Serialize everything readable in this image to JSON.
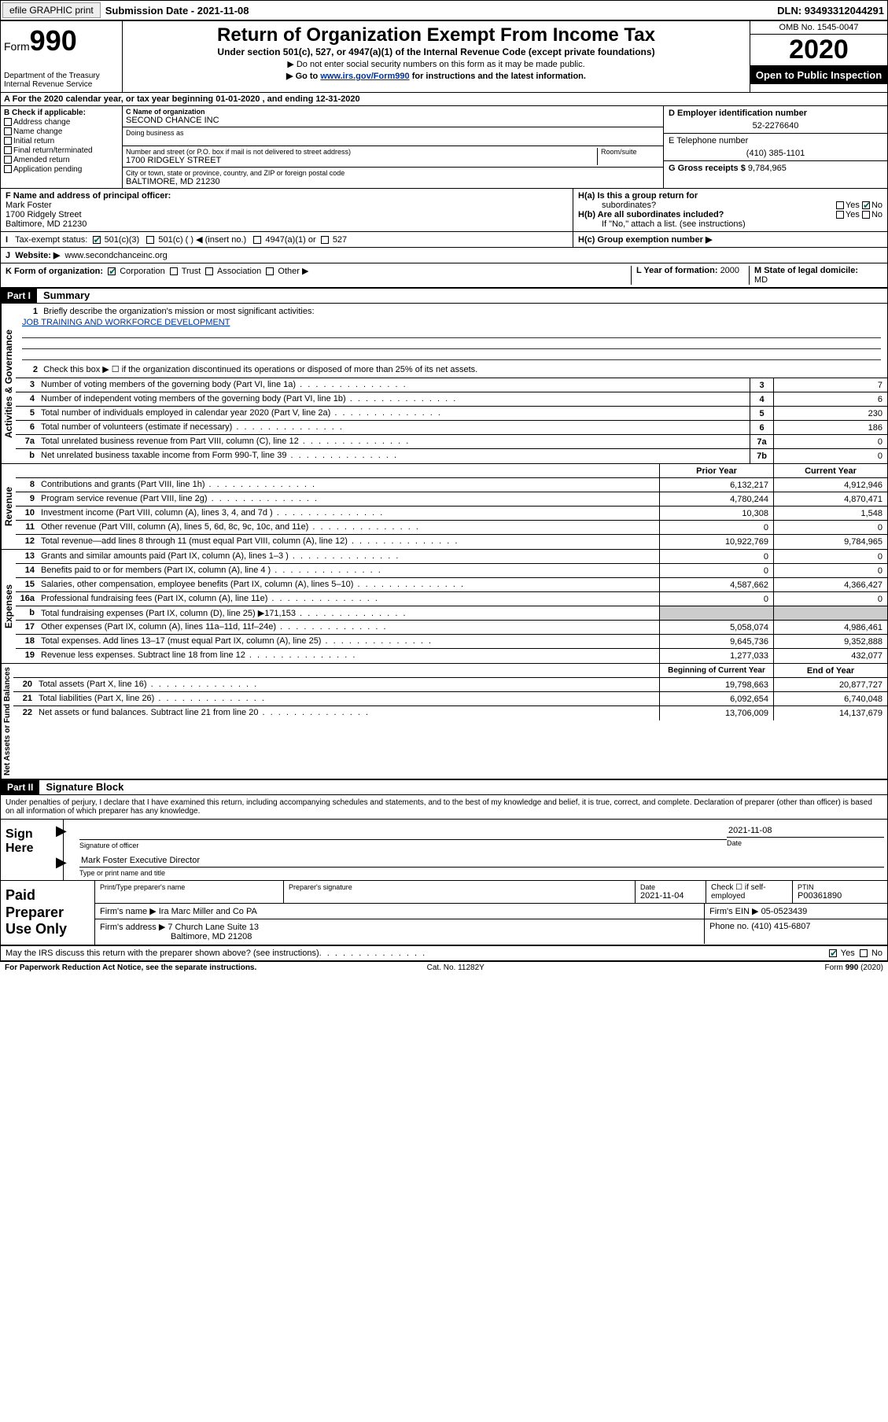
{
  "top_bar": {
    "efile_label": "efile GRAPHIC print",
    "submission_label": "Submission Date - ",
    "submission_date": "2021-11-08",
    "dln": "DLN: 93493312044291"
  },
  "header": {
    "form_label": "Form",
    "form_number": "990",
    "dept": "Department of the Treasury",
    "irs": "Internal Revenue Service",
    "title": "Return of Organization Exempt From Income Tax",
    "subtitle": "Under section 501(c), 527, or 4947(a)(1) of the Internal Revenue Code (except private foundations)",
    "note1": "Do not enter social security numbers on this form as it may be made public.",
    "note2_a": "Go to ",
    "note2_link": "www.irs.gov/Form990",
    "note2_b": " for instructions and the latest information.",
    "omb": "OMB No. 1545-0047",
    "year": "2020",
    "open_public": "Open to Public Inspection"
  },
  "calendar_line": "For the 2020 calendar year, or tax year beginning 01-01-2020    , and ending 12-31-2020",
  "section_b": {
    "label": "B Check if applicable:",
    "items": [
      "Address change",
      "Name change",
      "Initial return",
      "Final return/terminated",
      "Amended return",
      "Application pending"
    ]
  },
  "section_c": {
    "name_label": "C Name of organization",
    "name": "SECOND CHANCE INC",
    "dba_label": "Doing business as",
    "dba": "",
    "addr_label": "Number and street (or P.O. box if mail is not delivered to street address)",
    "room_label": "Room/suite",
    "addr": "1700 RIDGELY STREET",
    "city_label": "City or town, state or province, country, and ZIP or foreign postal code",
    "city": "BALTIMORE, MD  21230"
  },
  "section_d": {
    "label": "D Employer identification number",
    "value": "52-2276640"
  },
  "section_e": {
    "label": "E Telephone number",
    "value": "(410) 385-1101"
  },
  "section_g": {
    "label": "G Gross receipts $ ",
    "value": "9,784,965"
  },
  "section_f": {
    "label": "F  Name and address of principal officer:",
    "name": "Mark Foster",
    "addr1": "1700 Ridgely Street",
    "addr2": "Baltimore, MD  21230"
  },
  "section_h": {
    "ha_label": "H(a)  Is this a group return for",
    "ha_sub": "subordinates?",
    "hb_label": "H(b)  Are all subordinates included?",
    "hb_note": "If \"No,\" attach a list. (see instructions)",
    "hc_label": "H(c)  Group exemption number ▶"
  },
  "tax_status": {
    "label": "Tax-exempt status:",
    "opt1": "501(c)(3)",
    "opt2": "501(c) (   ) ◀ (insert no.)",
    "opt3": "4947(a)(1) or",
    "opt4": "527"
  },
  "website": {
    "label": "Website: ▶",
    "value": "www.secondchanceinc.org"
  },
  "section_k": {
    "label": "K Form of organization:",
    "opts": [
      "Corporation",
      "Trust",
      "Association",
      "Other ▶"
    ]
  },
  "section_l": {
    "label": "L Year of formation: ",
    "value": "2000"
  },
  "section_m": {
    "label": "M State of legal domicile:",
    "value": "MD"
  },
  "part1": {
    "header": "Part I",
    "title": "Summary",
    "q1_label": "Briefly describe the organization's mission or most significant activities:",
    "q1_value": "JOB TRAINING AND WORKFORCE DEVELOPMENT",
    "q2_label": "Check this box ▶ ☐  if the organization discontinued its operations or disposed of more than 25% of its net assets.",
    "governance_label": "Activities & Governance",
    "revenue_label": "Revenue",
    "expenses_label": "Expenses",
    "netassets_label": "Net Assets or Fund Balances",
    "rows_gov": [
      {
        "n": "3",
        "t": "Number of voting members of the governing body (Part VI, line 1a)",
        "box": "3",
        "v": "7"
      },
      {
        "n": "4",
        "t": "Number of independent voting members of the governing body (Part VI, line 1b)",
        "box": "4",
        "v": "6"
      },
      {
        "n": "5",
        "t": "Total number of individuals employed in calendar year 2020 (Part V, line 2a)",
        "box": "5",
        "v": "230"
      },
      {
        "n": "6",
        "t": "Total number of volunteers (estimate if necessary)",
        "box": "6",
        "v": "186"
      },
      {
        "n": "7a",
        "t": "Total unrelated business revenue from Part VIII, column (C), line 12",
        "box": "7a",
        "v": "0"
      },
      {
        "n": "b",
        "t": "Net unrelated business taxable income from Form 990-T, line 39",
        "box": "7b",
        "v": "0"
      }
    ],
    "prior_year": "Prior Year",
    "current_year": "Current Year",
    "rows_rev": [
      {
        "n": "8",
        "t": "Contributions and grants (Part VIII, line 1h)",
        "py": "6,132,217",
        "cy": "4,912,946"
      },
      {
        "n": "9",
        "t": "Program service revenue (Part VIII, line 2g)",
        "py": "4,780,244",
        "cy": "4,870,471"
      },
      {
        "n": "10",
        "t": "Investment income (Part VIII, column (A), lines 3, 4, and 7d )",
        "py": "10,308",
        "cy": "1,548"
      },
      {
        "n": "11",
        "t": "Other revenue (Part VIII, column (A), lines 5, 6d, 8c, 9c, 10c, and 11e)",
        "py": "0",
        "cy": "0"
      },
      {
        "n": "12",
        "t": "Total revenue—add lines 8 through 11 (must equal Part VIII, column (A), line 12)",
        "py": "10,922,769",
        "cy": "9,784,965"
      }
    ],
    "rows_exp": [
      {
        "n": "13",
        "t": "Grants and similar amounts paid (Part IX, column (A), lines 1–3 )",
        "py": "0",
        "cy": "0"
      },
      {
        "n": "14",
        "t": "Benefits paid to or for members (Part IX, column (A), line 4 )",
        "py": "0",
        "cy": "0"
      },
      {
        "n": "15",
        "t": "Salaries, other compensation, employee benefits (Part IX, column (A), lines 5–10)",
        "py": "4,587,662",
        "cy": "4,366,427"
      },
      {
        "n": "16a",
        "t": "Professional fundraising fees (Part IX, column (A), line 11e)",
        "py": "0",
        "cy": "0"
      },
      {
        "n": "b",
        "t": "Total fundraising expenses (Part IX, column (D), line 25)  ▶171,153",
        "py": "SHADED",
        "cy": "SHADED"
      },
      {
        "n": "17",
        "t": "Other expenses (Part IX, column (A), lines 11a–11d, 11f–24e)",
        "py": "5,058,074",
        "cy": "4,986,461"
      },
      {
        "n": "18",
        "t": "Total expenses. Add lines 13–17 (must equal Part IX, column (A), line 25)",
        "py": "9,645,736",
        "cy": "9,352,888"
      },
      {
        "n": "19",
        "t": "Revenue less expenses. Subtract line 18 from line 12",
        "py": "1,277,033",
        "cy": "432,077"
      }
    ],
    "begin_year": "Beginning of Current Year",
    "end_year": "End of Year",
    "rows_net": [
      {
        "n": "20",
        "t": "Total assets (Part X, line 16)",
        "py": "19,798,663",
        "cy": "20,877,727"
      },
      {
        "n": "21",
        "t": "Total liabilities (Part X, line 26)",
        "py": "6,092,654",
        "cy": "6,740,048"
      },
      {
        "n": "22",
        "t": "Net assets or fund balances. Subtract line 21 from line 20",
        "py": "13,706,009",
        "cy": "14,137,679"
      }
    ]
  },
  "part2": {
    "header": "Part II",
    "title": "Signature Block",
    "penalties": "Under penalties of perjury, I declare that I have examined this return, including accompanying schedules and statements, and to the best of my knowledge and belief, it is true, correct, and complete. Declaration of preparer (other than officer) is based on all information of which preparer has any knowledge."
  },
  "sign": {
    "label": "Sign Here",
    "sig_label": "Signature of officer",
    "date_label": "Date",
    "date": "2021-11-08",
    "name": "Mark Foster  Executive Director",
    "name_label": "Type or print name and title"
  },
  "preparer": {
    "label": "Paid Preparer Use Only",
    "h1": "Print/Type preparer's name",
    "h2": "Preparer's signature",
    "h3_label": "Date",
    "h3": "2021-11-04",
    "h4": "Check ☐ if self-employed",
    "h5_label": "PTIN",
    "h5": "P00361890",
    "firm_name_label": "Firm's name      ▶ ",
    "firm_name": "Ira Marc Miller and Co PA",
    "firm_ein_label": "Firm's EIN ▶ ",
    "firm_ein": "05-0523439",
    "firm_addr_label": "Firm's address ▶ ",
    "firm_addr1": "7 Church Lane Suite 13",
    "firm_addr2": "Baltimore, MD  21208",
    "phone_label": "Phone no. ",
    "phone": "(410) 415-6807"
  },
  "discuss": {
    "label": "May the IRS discuss this return with the preparer shown above? (see instructions)",
    "yes": "Yes",
    "no": "No"
  },
  "footer": {
    "left": "For Paperwork Reduction Act Notice, see the separate instructions.",
    "mid": "Cat. No. 11282Y",
    "right": "Form 990 (2020)"
  }
}
